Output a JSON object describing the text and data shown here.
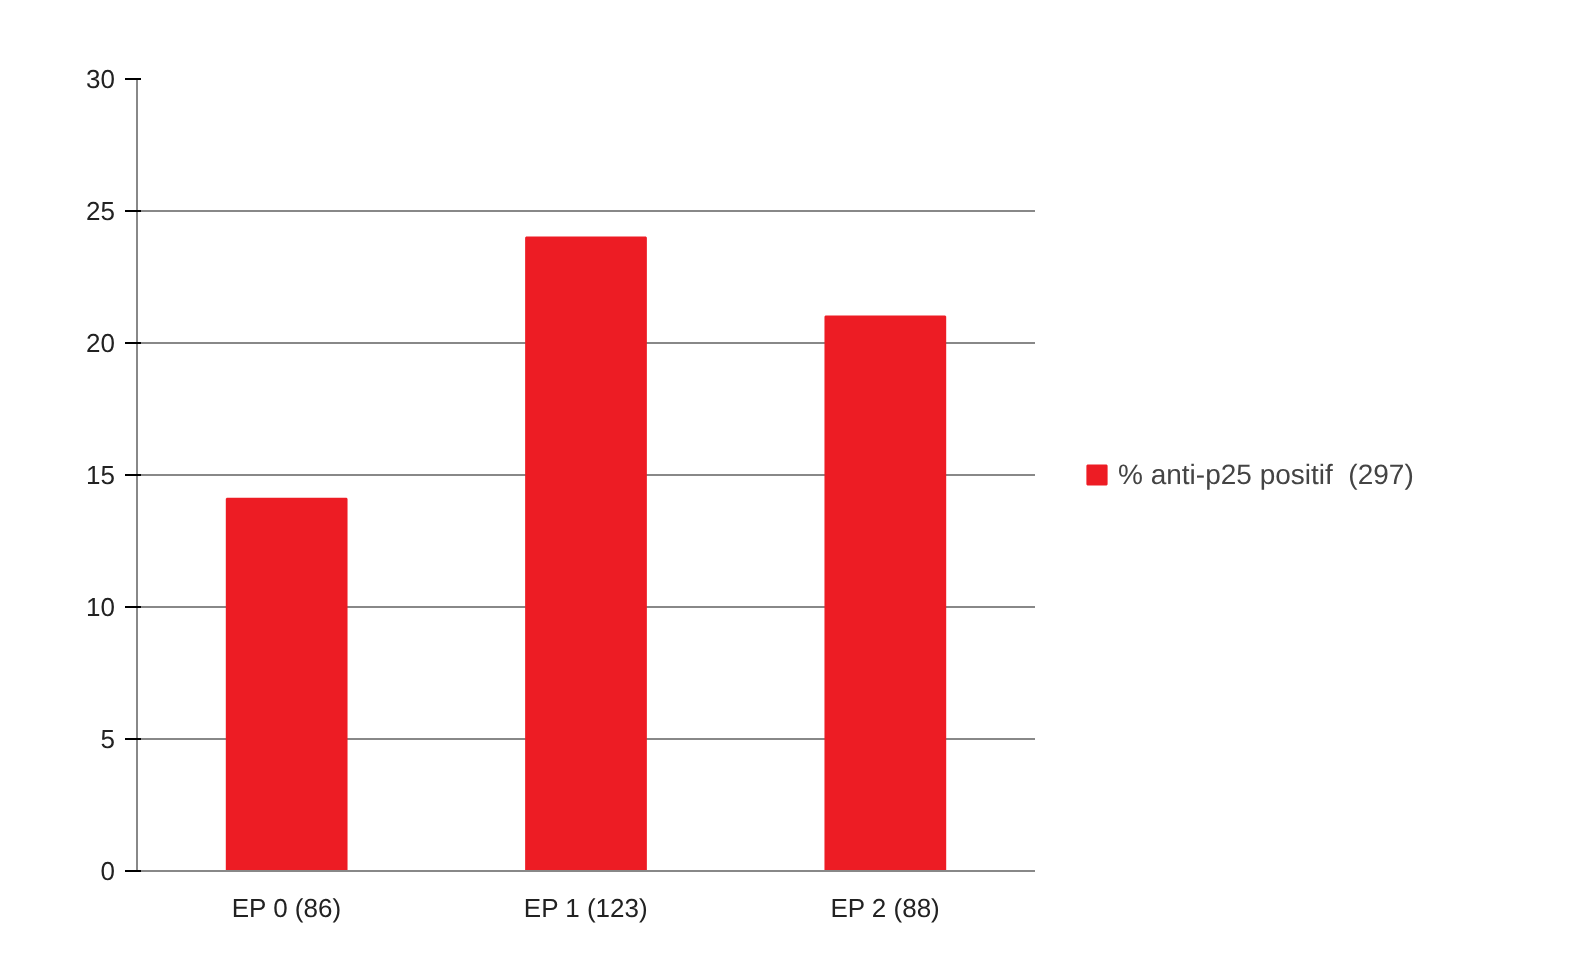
{
  "chart_data": {
    "type": "bar",
    "categories": [
      "EP 0 (86)",
      "EP 1 (123)",
      "EP 2 (88)"
    ],
    "series": [
      {
        "name": "% anti-p25 positif  (297)",
        "color": "#ed1c24",
        "values": [
          14.1,
          24.0,
          21.0
        ]
      }
    ],
    "ylim": [
      0,
      30
    ],
    "yticks": [
      0,
      5,
      10,
      15,
      20,
      25,
      30
    ],
    "grid": "y",
    "legend": "right"
  }
}
